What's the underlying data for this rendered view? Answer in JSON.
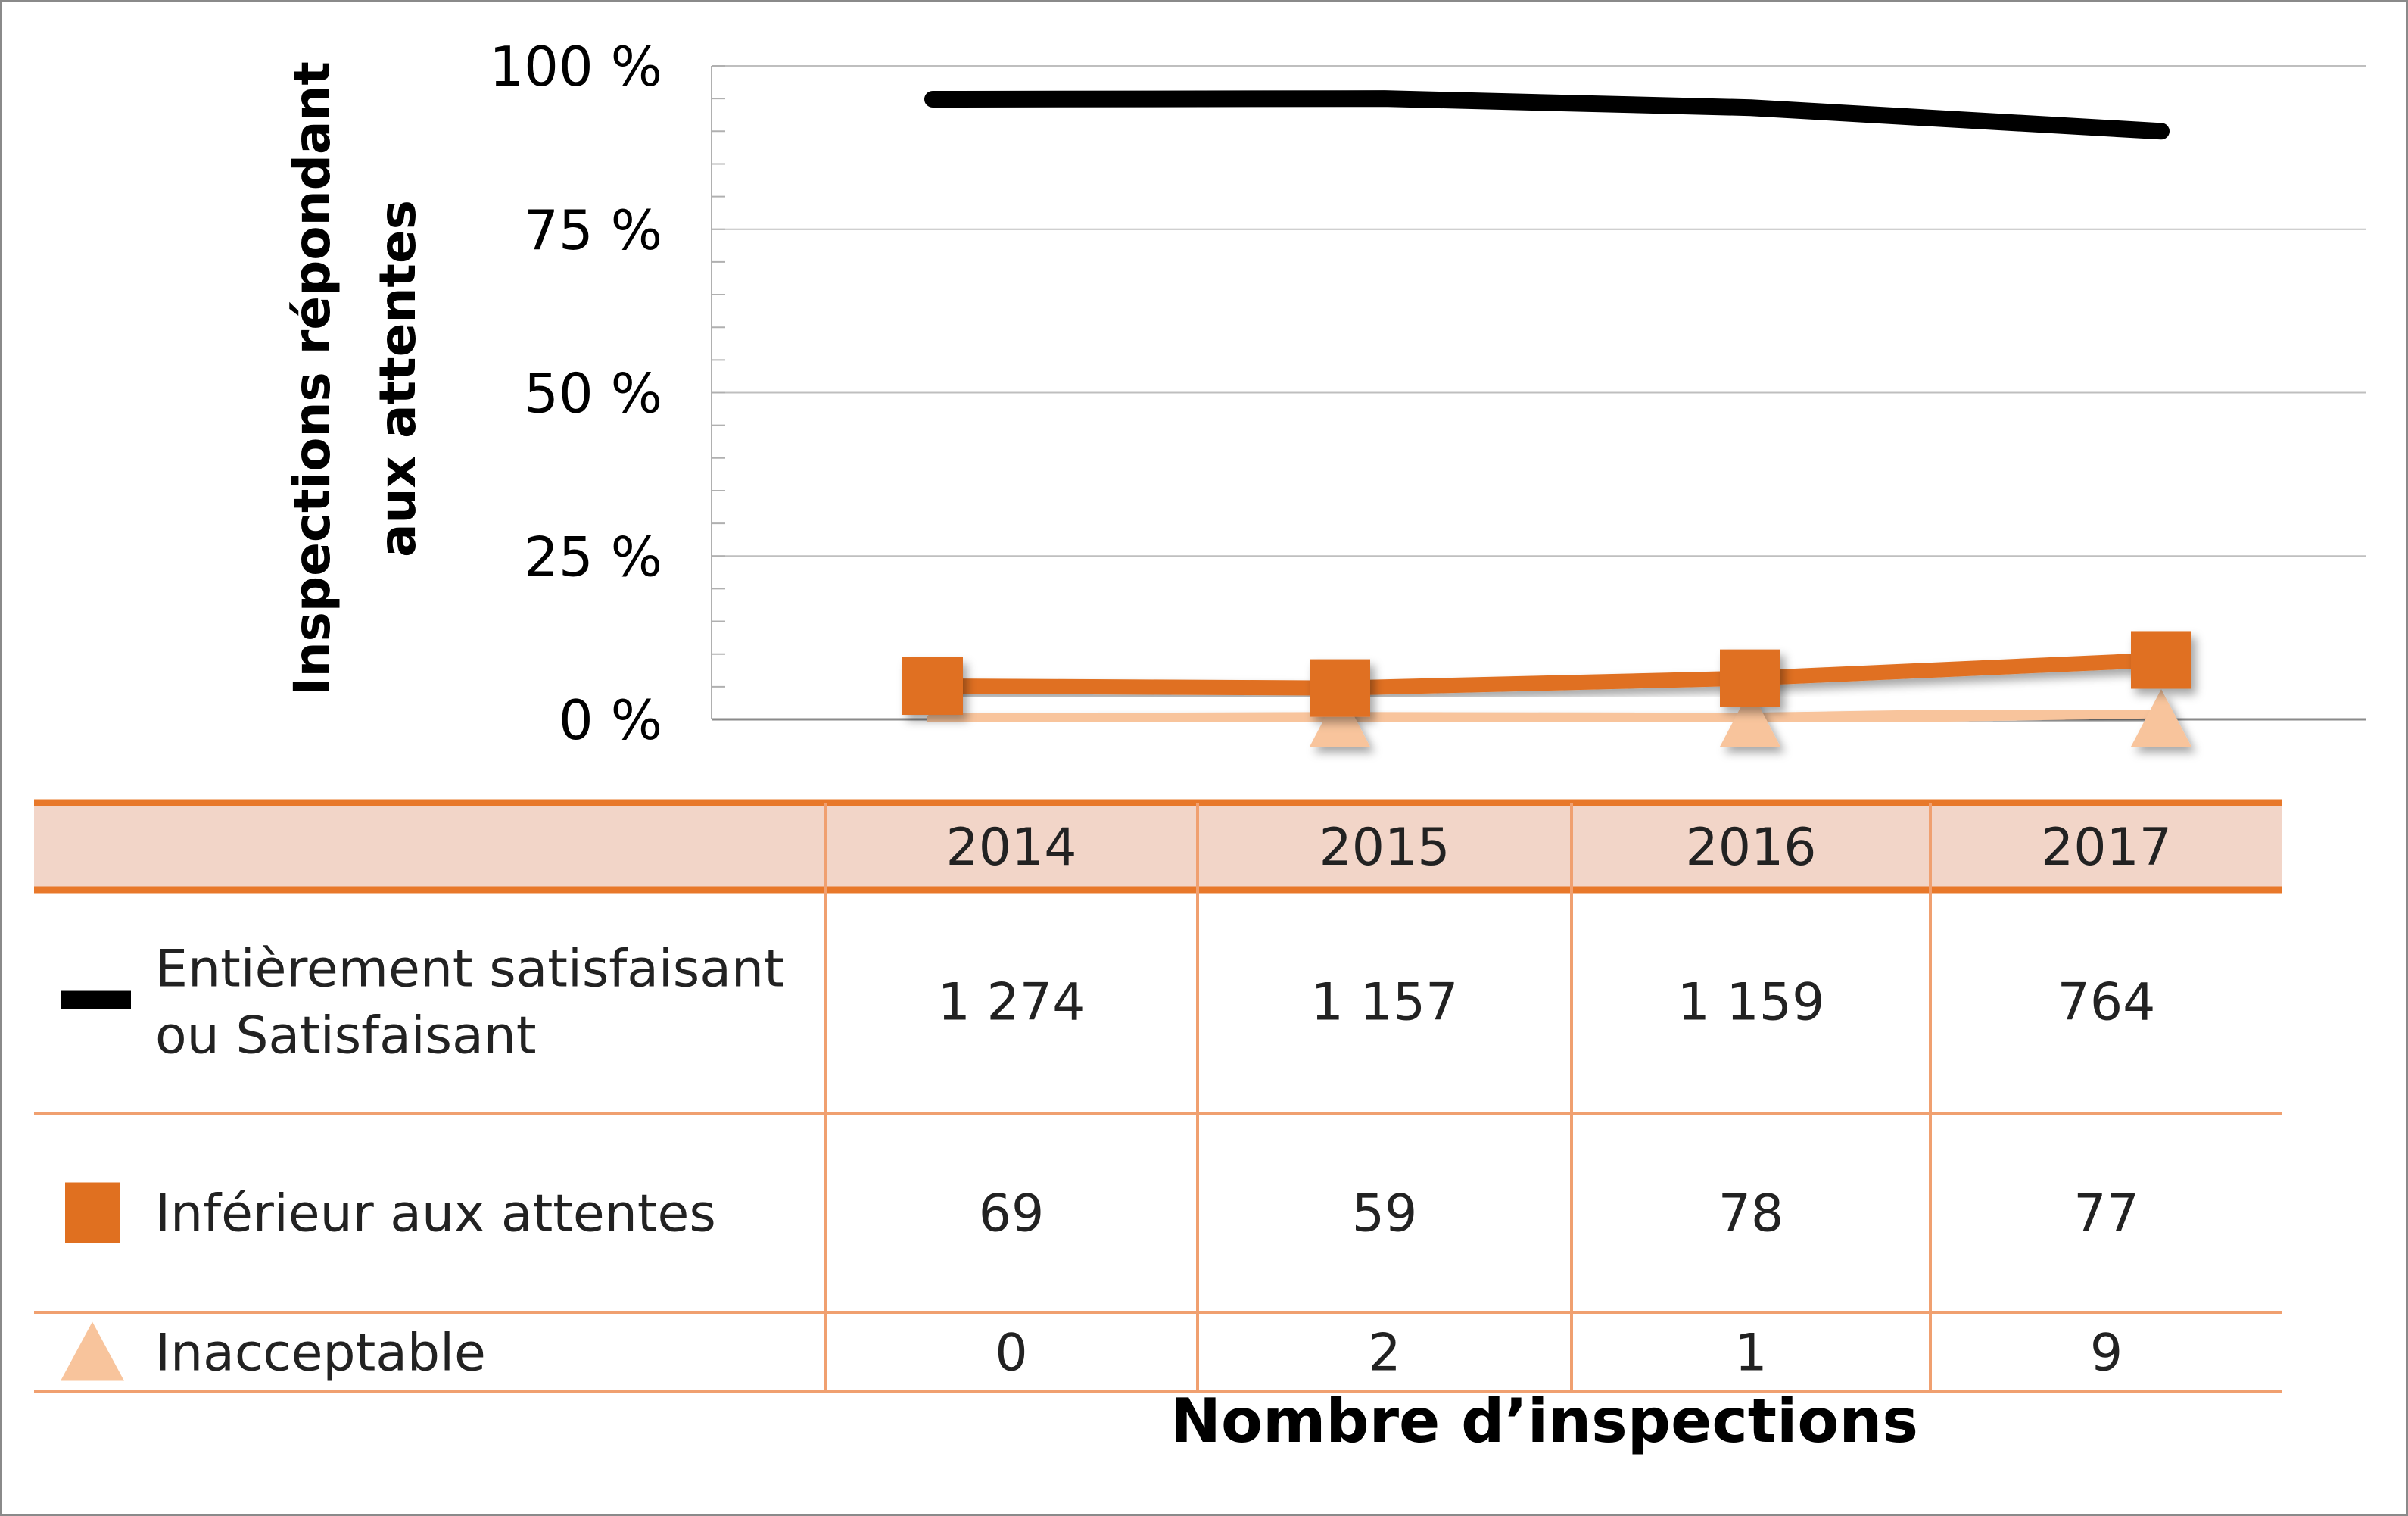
{
  "chart_data": {
    "type": "line",
    "categories": [
      "2014",
      "2015",
      "2016",
      "2017"
    ],
    "ylabel": "Inspections répondant aux attentes",
    "xlabel": "Nombre d’inspections",
    "yticks": [
      "0 %",
      "25 %",
      "50 %",
      "75 %",
      "100 %"
    ],
    "ylim": [
      0,
      100
    ],
    "grid": true,
    "series": [
      {
        "name": "Entièrement satisfaisant ou Satisfaisant",
        "name_lines": [
          "Entièrement satisfaisant",
          "ou Satisfaisant"
        ],
        "values_pct": [
          94.9,
          95.0,
          93.6,
          90.0
        ],
        "counts": [
          "1 274",
          "1 157",
          "1 159",
          "764"
        ],
        "color": "#000000",
        "marker": "none"
      },
      {
        "name": "Inférieur aux attentes",
        "name_lines": [
          "Inférieur aux attentes"
        ],
        "values_pct": [
          5.1,
          4.8,
          6.3,
          9.1
        ],
        "counts": [
          "69",
          "59",
          "78",
          "77"
        ],
        "color": "#E07020",
        "marker": "square"
      },
      {
        "name": "Inacceptable",
        "name_lines": [
          "Inacceptable"
        ],
        "values_pct": [
          0.0,
          0.2,
          0.1,
          1.1
        ],
        "counts": [
          "0",
          "2",
          "1",
          "9"
        ],
        "color": "#F8C49C",
        "marker": "triangle"
      }
    ],
    "colors": {
      "table_border": "#E8782A",
      "table_line": "#F0A070",
      "header_fill": "#F2D5C8",
      "grid": "#bfbfbf"
    }
  }
}
